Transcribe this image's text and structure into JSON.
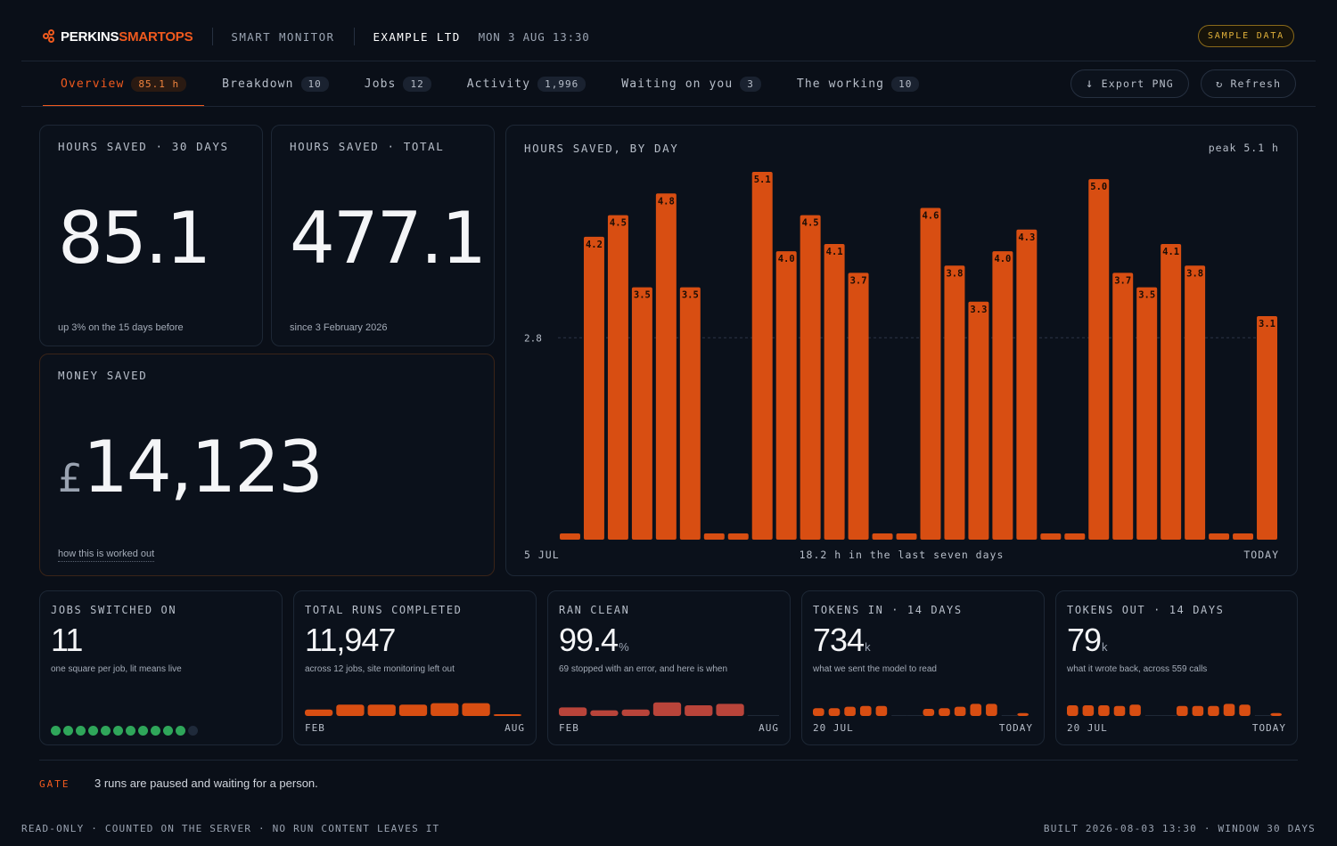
{
  "header": {
    "brand_a": "PERKINS",
    "brand_b": "SMARTOPS",
    "product": "SMART MONITOR",
    "client": "EXAMPLE LTD",
    "datetime": "MON 3 AUG 13:30",
    "badge": "SAMPLE DATA"
  },
  "tabs": [
    {
      "label": "Overview",
      "count": "85.1 h"
    },
    {
      "label": "Breakdown",
      "count": "10"
    },
    {
      "label": "Jobs",
      "count": "12"
    },
    {
      "label": "Activity",
      "count": "1,996"
    },
    {
      "label": "Waiting on you",
      "count": "3"
    },
    {
      "label": "The working",
      "count": "10"
    }
  ],
  "toolbar": {
    "export_label": "Export PNG",
    "refresh_label": "Refresh",
    "export_icon": "↓",
    "refresh_icon": "↻"
  },
  "kpi": {
    "hours30": {
      "label": "HOURS SAVED · 30 DAYS",
      "value": "85.1",
      "foot": "up 3% on the 15 days before"
    },
    "hoursTotal": {
      "label": "HOURS SAVED · TOTAL",
      "value": "477.1",
      "foot": "since 3 February 2026"
    },
    "money": {
      "label": "MONEY SAVED",
      "currency": "£",
      "value": "14,123",
      "foot": "how this is worked out"
    }
  },
  "chart_data": {
    "type": "bar",
    "title": "HOURS SAVED, BY DAY",
    "peak_label": "peak 5.1 h",
    "reference_line": {
      "value": 2.8,
      "label": "2.8"
    },
    "x_start_label": "5 JUL",
    "x_end_label": "TODAY",
    "summary": "18.2 h in the last seven days",
    "ylim": [
      0,
      5.1
    ],
    "bar_color": "#d84e12",
    "values": [
      0,
      4.2,
      4.5,
      3.5,
      4.8,
      3.5,
      0,
      0,
      5.1,
      4.0,
      4.5,
      4.1,
      3.7,
      0,
      0,
      4.6,
      3.8,
      3.3,
      4.0,
      4.3,
      0,
      0,
      5.0,
      3.7,
      3.5,
      4.1,
      3.8,
      0,
      0,
      3.1
    ],
    "labels": [
      "",
      "4.2",
      "4.5",
      "3.5",
      "4.8",
      "3.5",
      "",
      "",
      "5.1",
      "4.0",
      "4.5",
      "4.1",
      "3.7",
      "",
      "",
      "4.6",
      "3.8",
      "3.3",
      "4.0",
      "4.3",
      "",
      "",
      "5.0",
      "3.7",
      "3.5",
      "4.1",
      "3.8",
      "",
      "",
      "3.1"
    ]
  },
  "small": {
    "jobs": {
      "label": "JOBS SWITCHED ON",
      "value": "11",
      "sub": "one square per job, lit means live",
      "dots": [
        1,
        1,
        1,
        1,
        1,
        1,
        1,
        1,
        1,
        1,
        1,
        0
      ]
    },
    "runs": {
      "label": "TOTAL RUNS COMPLETED",
      "value": "11,947",
      "sub": "across 12 jobs, site monitoring left out",
      "axis_start": "FEB",
      "axis_end": "AUG",
      "spark": [
        0.45,
        0.8,
        0.8,
        0.8,
        0.9,
        0.9,
        0.05
      ]
    },
    "clean": {
      "label": "RAN CLEAN",
      "value": "99.4",
      "unit": "%",
      "sub": "69 stopped with an error, and here is when",
      "axis_start": "FEB",
      "axis_end": "AUG",
      "spark": [
        0.6,
        0.4,
        0.45,
        0.95,
        0.75,
        0.85,
        0
      ]
    },
    "tokensIn": {
      "label": "TOKENS IN · 14 DAYS",
      "value": "734",
      "unit": "k",
      "sub": "what we sent the model to read",
      "axis_start": "20 JUL",
      "axis_end": "TODAY",
      "spark": [
        0.55,
        0.55,
        0.65,
        0.7,
        0.7,
        0,
        0,
        0.5,
        0.55,
        0.65,
        0.85,
        0.85,
        0,
        0.2
      ]
    },
    "tokensOut": {
      "label": "TOKENS OUT · 14 DAYS",
      "value": "79",
      "unit": "k",
      "sub": "what it wrote back, across 559 calls",
      "axis_start": "20 JUL",
      "axis_end": "TODAY",
      "spark": [
        0.75,
        0.75,
        0.75,
        0.7,
        0.8,
        0,
        0,
        0.7,
        0.7,
        0.7,
        0.85,
        0.8,
        0,
        0.2
      ]
    }
  },
  "gate": {
    "label": "GATE",
    "text": "3 runs are paused and waiting for a person."
  },
  "footer": {
    "left": "READ-ONLY · COUNTED ON THE SERVER · NO RUN CONTENT LEAVES IT",
    "right": "BUILT 2026-08-03 13:30 · WINDOW 30 DAYS"
  },
  "colors": {
    "accent": "#f05a1e",
    "bar": "#d84e12",
    "clean_bar": "#b9443a",
    "live": "#2fa65a",
    "idle": "#1f2a3a"
  }
}
